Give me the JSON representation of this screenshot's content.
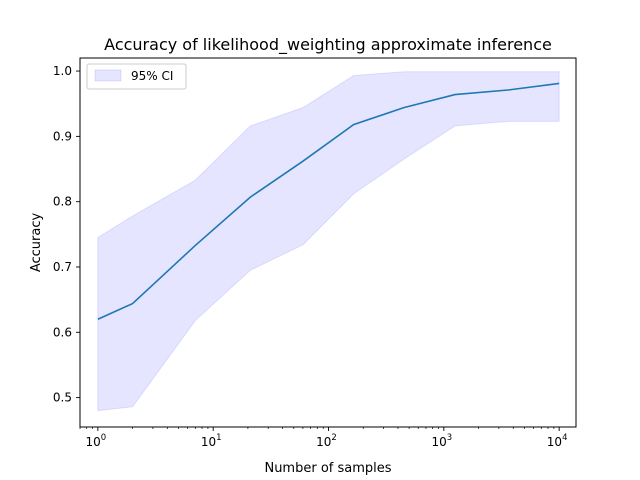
{
  "chart_data": {
    "type": "line",
    "title": "Accuracy of likelihood_weighting approximate inference",
    "xlabel": "Number of samples",
    "ylabel": "Accuracy",
    "xscale": "log",
    "xlim": [
      0.7,
      14000
    ],
    "ylim": [
      0.455,
      1.02
    ],
    "x_ticks": [
      {
        "value": 1,
        "base": "10",
        "exp": "0"
      },
      {
        "value": 10,
        "base": "10",
        "exp": "1"
      },
      {
        "value": 100,
        "base": "10",
        "exp": "2"
      },
      {
        "value": 1000,
        "base": "10",
        "exp": "3"
      },
      {
        "value": 10000,
        "base": "10",
        "exp": "4"
      }
    ],
    "y_ticks": [
      {
        "value": 0.5,
        "label": "0.5"
      },
      {
        "value": 0.6,
        "label": "0.6"
      },
      {
        "value": 0.7,
        "label": "0.7"
      },
      {
        "value": 0.8,
        "label": "0.8"
      },
      {
        "value": 0.9,
        "label": "0.9"
      },
      {
        "value": 1.0,
        "label": "1.0"
      }
    ],
    "x": [
      1,
      2,
      7,
      21,
      60,
      165,
      450,
      1250,
      3600,
      10000
    ],
    "series": [
      {
        "values": [
          0.62,
          0.644,
          0.733,
          0.807,
          0.862,
          0.918,
          0.944,
          0.964,
          0.971,
          0.981
        ],
        "color": "#1f77b4"
      }
    ],
    "ci": {
      "name": "95% CI",
      "lower": [
        0.48,
        0.486,
        0.618,
        0.695,
        0.734,
        0.812,
        0.865,
        0.916,
        0.923,
        0.923
      ],
      "upper": [
        0.745,
        0.778,
        0.833,
        0.916,
        0.944,
        0.993,
        0.999,
        0.999,
        0.999,
        0.999
      ],
      "color": "#0000ff",
      "opacity": 0.1
    },
    "legend": {
      "position": "top-left"
    },
    "grid": false
  }
}
